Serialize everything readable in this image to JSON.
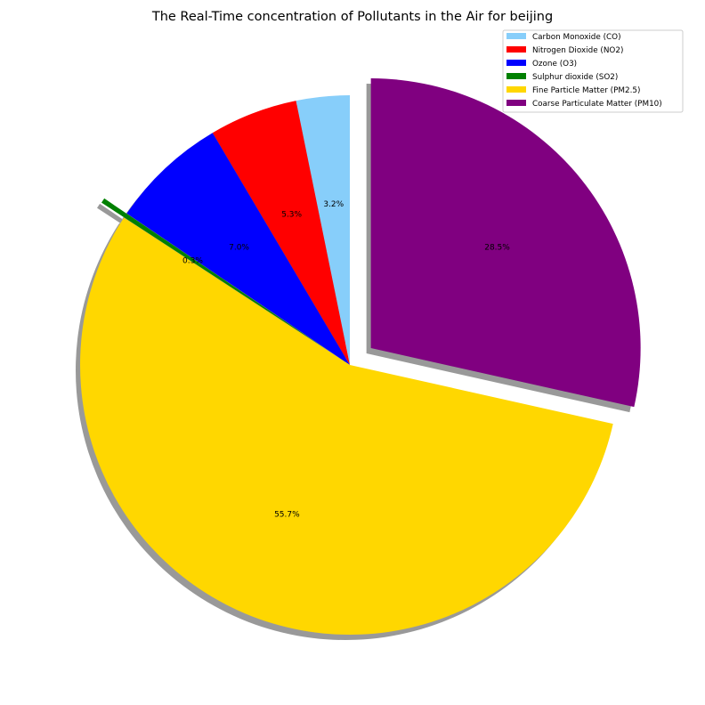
{
  "chart_data": {
    "type": "pie",
    "title": "The Real-Time concentration of Pollutants in the Air for beijing",
    "slices": [
      {
        "label": "Carbon Monoxide (CO)",
        "value": 3.2,
        "pct_label": "3.2%",
        "color": "#87CEFA",
        "explode": false
      },
      {
        "label": "Nitrogen Dioxide (NO2)",
        "value": 5.3,
        "pct_label": "5.3%",
        "color": "#FF0000",
        "explode": false
      },
      {
        "label": "Ozone (O3)",
        "value": 7.0,
        "pct_label": "7.0%",
        "color": "#0000FF",
        "explode": false
      },
      {
        "label": "Sulphur dioxide (SO2)",
        "value": 0.3,
        "pct_label": "0.3%",
        "color": "#008000",
        "explode": true
      },
      {
        "label": "Fine Particle Matter (PM2.5)",
        "value": 55.7,
        "pct_label": "55.7%",
        "color": "#FFD700",
        "explode": false
      },
      {
        "label": "Coarse Particulate Matter (PM10)",
        "value": 28.5,
        "pct_label": "28.5%",
        "color": "#800080",
        "explode": true
      }
    ],
    "start_angle_deg": 90,
    "direction": "counterclockwise",
    "shadow": true,
    "legend_position": "top-right"
  }
}
